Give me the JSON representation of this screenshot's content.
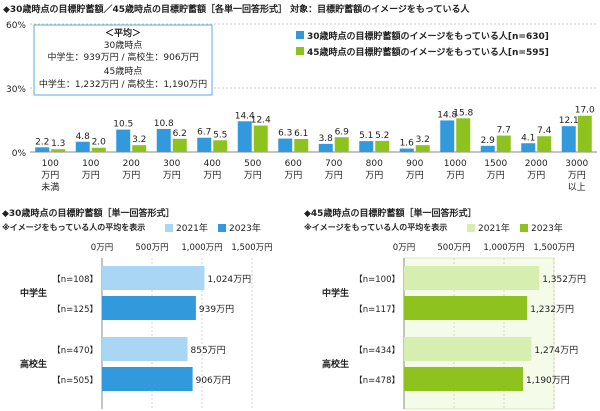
{
  "colors": {
    "blue": "#3399dd",
    "green": "#8dc21f",
    "light_blue": "#a8d6f4",
    "light_green": "#d6efb0",
    "grid": "#bbbbbb",
    "box_border": "#5aaedf",
    "green_panel": "#f4fbe8"
  },
  "chart_data": [
    {
      "type": "bar",
      "title": "◆30歳時点の目標貯蓄額／45歳時点の目標貯蓄額［各単一回答形式］ 対象：目標貯蓄額のイメージをもっている人",
      "ylim": [
        0,
        60
      ],
      "y_ticks": [
        "60%",
        "30%",
        "0%"
      ],
      "categories": [
        [
          "100",
          "万円",
          "未満"
        ],
        [
          "100",
          "万円"
        ],
        [
          "200",
          "万円"
        ],
        [
          "300",
          "万円"
        ],
        [
          "400",
          "万円"
        ],
        [
          "500",
          "万円"
        ],
        [
          "600",
          "万円"
        ],
        [
          "700",
          "万円"
        ],
        [
          "800",
          "万円"
        ],
        [
          "900",
          "万円"
        ],
        [
          "1000",
          "万円"
        ],
        [
          "1500",
          "万円"
        ],
        [
          "2000",
          "万円"
        ],
        [
          "3000",
          "万円",
          "以上"
        ]
      ],
      "series": [
        {
          "name": "30歳時点の目標貯蓄額のイメージをもっている人[n=630]",
          "values": [
            2.2,
            4.8,
            10.5,
            10.8,
            6.7,
            14.4,
            6.3,
            3.8,
            5.1,
            1.6,
            14.8,
            2.9,
            4.1,
            12.1
          ]
        },
        {
          "name": "45歳時点の目標貯蓄額のイメージをもっている人[n=595]",
          "values": [
            1.3,
            2.0,
            3.2,
            6.2,
            5.5,
            12.4,
            6.1,
            6.9,
            5.2,
            3.2,
            15.8,
            7.7,
            7.4,
            17.0
          ]
        }
      ],
      "legend_position": "top-right",
      "average_box": {
        "title": "＜平均＞",
        "label_30": "30歳時点",
        "line_30": "中学生：939万円 / 高校生：906万円",
        "label_45": "45歳時点",
        "line_45": "中学生：1,232万円 / 高校生：1,190万円"
      }
    },
    {
      "type": "bar",
      "orientation": "horizontal",
      "title": "◆30歳時点の目標貯蓄額［単一回答形式］",
      "subtitle": "※イメージをもっている人の平均を表示",
      "xlim": [
        0,
        1500
      ],
      "x_ticks": [
        "0万円",
        "500万円",
        "1,000万円",
        "1,500万円"
      ],
      "legend": [
        "2021年",
        "2023年"
      ],
      "groups": [
        {
          "label": "中学生",
          "bars": [
            {
              "year": "2021年",
              "n": "【n=108】",
              "value": 1024,
              "label": "1,024万円"
            },
            {
              "year": "2023年",
              "n": "【n=125】",
              "value": 939,
              "label": "939万円"
            }
          ]
        },
        {
          "label": "高校生",
          "bars": [
            {
              "year": "2021年",
              "n": "【n=470】",
              "value": 855,
              "label": "855万円"
            },
            {
              "year": "2023年",
              "n": "【n=505】",
              "value": 906,
              "label": "906万円"
            }
          ]
        }
      ]
    },
    {
      "type": "bar",
      "orientation": "horizontal",
      "title": "◆45歳時点の目標貯蓄額［単一回答形式］",
      "subtitle": "※イメージをもっている人の平均を表示",
      "xlim": [
        0,
        1500
      ],
      "x_ticks": [
        "0万円",
        "500万円",
        "1,000万円",
        "1,500万円"
      ],
      "legend": [
        "2021年",
        "2023年"
      ],
      "groups": [
        {
          "label": "中学生",
          "bars": [
            {
              "year": "2021年",
              "n": "【n=100】",
              "value": 1352,
              "label": "1,352万円"
            },
            {
              "year": "2023年",
              "n": "【n=117】",
              "value": 1232,
              "label": "1,232万円"
            }
          ]
        },
        {
          "label": "高校生",
          "bars": [
            {
              "year": "2021年",
              "n": "【n=434】",
              "value": 1274,
              "label": "1,274万円"
            },
            {
              "year": "2023年",
              "n": "【n=478】",
              "value": 1190,
              "label": "1,190万円"
            }
          ]
        }
      ]
    }
  ]
}
